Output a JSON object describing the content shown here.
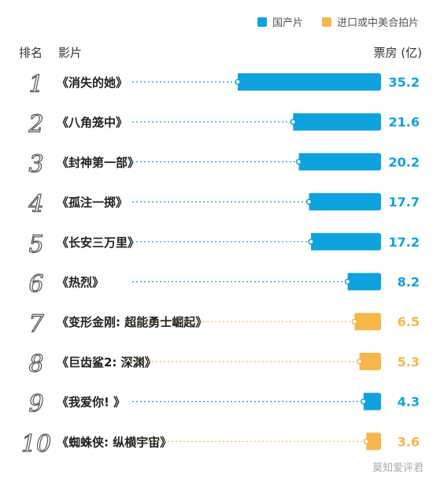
{
  "legend": [
    {
      "label": "国产片",
      "color": "#0ea2df"
    },
    {
      "label": "进口或中美合拍片",
      "color": "#f7b64a"
    }
  ],
  "header": {
    "rank": "排名",
    "film": "影片",
    "box_office": "票房 (亿)"
  },
  "chart_data": {
    "type": "bar",
    "orientation": "horizontal",
    "categories": [
      "《消失的她》",
      "《八角笼中》",
      "《封神第一部》",
      "《孤注一掷》",
      "《长安三万里》",
      "《热烈》",
      "《变形金刚: 超能勇士崛起》",
      "《巨齿鲨2: 深渊》",
      "《我爱你! 》",
      "《蜘蛛侠: 纵横宇宙》"
    ],
    "ranks": [
      "1",
      "2",
      "3",
      "4",
      "5",
      "6",
      "7",
      "8",
      "9",
      "10"
    ],
    "values": [
      35.2,
      21.6,
      20.2,
      17.7,
      17.2,
      8.2,
      6.5,
      5.3,
      4.3,
      3.6
    ],
    "value_labels": [
      "35.2",
      "21.6",
      "20.2",
      "17.7",
      "17.2",
      "8.2",
      "6.5",
      "5.3",
      "4.3",
      "3.6"
    ],
    "groups": [
      "国产片",
      "国产片",
      "国产片",
      "国产片",
      "国产片",
      "国产片",
      "进口或中美合拍片",
      "进口或中美合拍片",
      "国产片",
      "进口或中美合拍片"
    ],
    "colors": {
      "国产片": "#0ea2df",
      "进口或中美合拍片": "#f7b64a"
    },
    "xlim": [
      0,
      35.2
    ],
    "grid": false
  },
  "watermark": "莫知爱评君"
}
